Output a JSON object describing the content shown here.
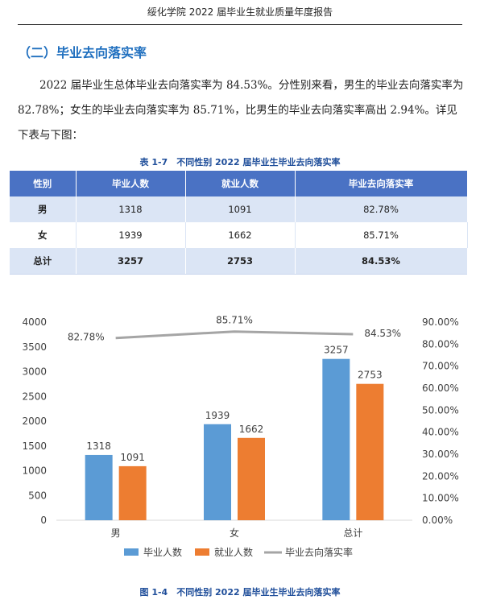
{
  "header": {
    "title": "绥化学院 2022 届毕业生就业质量年度报告"
  },
  "section": {
    "title": "（二）毕业去向落实率"
  },
  "paragraph": "2022 届毕业生总体毕业去向落实率为 84.53%。分性别来看，男生的毕业去向落实率为 82.78%；女生的毕业去向落实率为 85.71%，比男生的毕业去向落实率高出 2.94%。详见下表与下图：",
  "table": {
    "caption": "表 1-7　不同性别 2022 届毕业生毕业去向落实率",
    "headers": [
      "性别",
      "毕业人数",
      "就业人数",
      "毕业去向落实率"
    ],
    "rows": [
      [
        "男",
        "1318",
        "1091",
        "82.78%"
      ],
      [
        "女",
        "1939",
        "1662",
        "85.71%"
      ],
      [
        "总计",
        "3257",
        "2753",
        "84.53%"
      ]
    ]
  },
  "figure": {
    "caption": "图 1-4　不同性别 2022 届毕业生毕业去向落实率"
  },
  "chart_data": {
    "type": "bar",
    "categories": [
      "男",
      "女",
      "总计"
    ],
    "series": [
      {
        "name": "毕业人数",
        "kind": "bar",
        "axis": "left",
        "color": "#5b9bd5",
        "values": [
          1318,
          1939,
          3257
        ],
        "labels": [
          "1318",
          "1939",
          "3257"
        ]
      },
      {
        "name": "就业人数",
        "kind": "bar",
        "axis": "left",
        "color": "#ed7d31",
        "values": [
          1091,
          1662,
          2753
        ],
        "labels": [
          "1091",
          "1662",
          "2753"
        ]
      },
      {
        "name": "毕业去向落实率",
        "kind": "line",
        "axis": "right",
        "color": "#a5a5a5",
        "values": [
          82.78,
          85.71,
          84.53
        ],
        "labels": [
          "82.78%",
          "85.71%",
          "84.53%"
        ]
      }
    ],
    "ylim_left": [
      0,
      4000
    ],
    "yticks_left": [
      "0",
      "500",
      "1000",
      "1500",
      "2000",
      "2500",
      "3000",
      "3500",
      "4000"
    ],
    "ylim_right": [
      0,
      90
    ],
    "yticks_right": [
      "0.00%",
      "10.00%",
      "20.00%",
      "30.00%",
      "40.00%",
      "50.00%",
      "60.00%",
      "70.00%",
      "80.00%",
      "90.00%"
    ],
    "legend_position": "bottom",
    "grid": false
  }
}
